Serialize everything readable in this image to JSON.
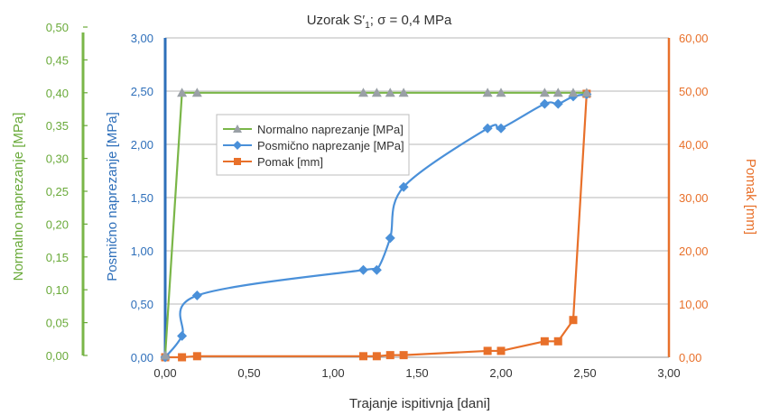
{
  "chart_data": {
    "type": "line",
    "title_parts": {
      "pre": "Uzorak S",
      "prime": "′",
      "sub": "1",
      "post": "; σ = 0,4 MPa"
    },
    "xlabel": "Trajanje ispitivnja [dani]",
    "x_ticks": [
      "0,00",
      "0,50",
      "1,00",
      "1,50",
      "2,00",
      "2,50",
      "3,00"
    ],
    "xlim": [
      0,
      3
    ],
    "axes": {
      "left_outer": {
        "label": "Normalno naprezanje [MPa]",
        "color": "#6aaa3a",
        "ylim": [
          0,
          0.5
        ],
        "ticks": [
          "0,00",
          "0,05",
          "0,10",
          "0,15",
          "0,20",
          "0,25",
          "0,30",
          "0,35",
          "0,40",
          "0,45",
          "0,50"
        ]
      },
      "left_inner": {
        "label": "Posmično naprezanje [MPa]",
        "color": "#2e6fba",
        "ylim": [
          0,
          3
        ],
        "ticks": [
          "0,00",
          "0,50",
          "1,00",
          "1,50",
          "2,00",
          "2,50",
          "3,00"
        ]
      },
      "right": {
        "label": "Pomak [mm]",
        "color": "#e8702a",
        "ylim": [
          0,
          60
        ],
        "ticks": [
          "0,00",
          "10,00",
          "20,00",
          "30,00",
          "40,00",
          "50,00",
          "60,00"
        ]
      }
    },
    "grid": true,
    "legend_position": "upper-left",
    "series": [
      {
        "name": "Normalno naprezanje [MPa]",
        "axis": "left_outer",
        "color": "#7ab648",
        "marker": "triangle",
        "x": [
          0.0,
          0.1,
          0.19,
          1.18,
          1.26,
          1.34,
          1.42,
          1.92,
          2.0,
          2.26,
          2.34,
          2.43,
          2.51
        ],
        "y": [
          0.0,
          0.4,
          0.4,
          0.4,
          0.4,
          0.4,
          0.4,
          0.4,
          0.4,
          0.4,
          0.4,
          0.4,
          0.4
        ]
      },
      {
        "name": "Posmično naprezanje [MPa]",
        "axis": "left_inner",
        "color": "#4a90d9",
        "marker": "diamond",
        "x": [
          0.0,
          0.1,
          0.19,
          1.18,
          1.26,
          1.34,
          1.42,
          1.92,
          2.0,
          2.26,
          2.34,
          2.43,
          2.51
        ],
        "y": [
          0.0,
          0.2,
          0.58,
          0.82,
          0.82,
          1.12,
          1.6,
          2.15,
          2.15,
          2.38,
          2.38,
          2.45,
          2.47
        ]
      },
      {
        "name": "Pomak [mm]",
        "axis": "right",
        "color": "#e8702a",
        "marker": "square",
        "x": [
          0.0,
          0.1,
          0.19,
          1.18,
          1.26,
          1.34,
          1.42,
          1.92,
          2.0,
          2.26,
          2.34,
          2.43,
          2.51
        ],
        "y": [
          0.0,
          0.0,
          0.2,
          0.2,
          0.2,
          0.4,
          0.4,
          1.2,
          1.2,
          3.0,
          3.0,
          7.0,
          49.5
        ]
      }
    ]
  }
}
